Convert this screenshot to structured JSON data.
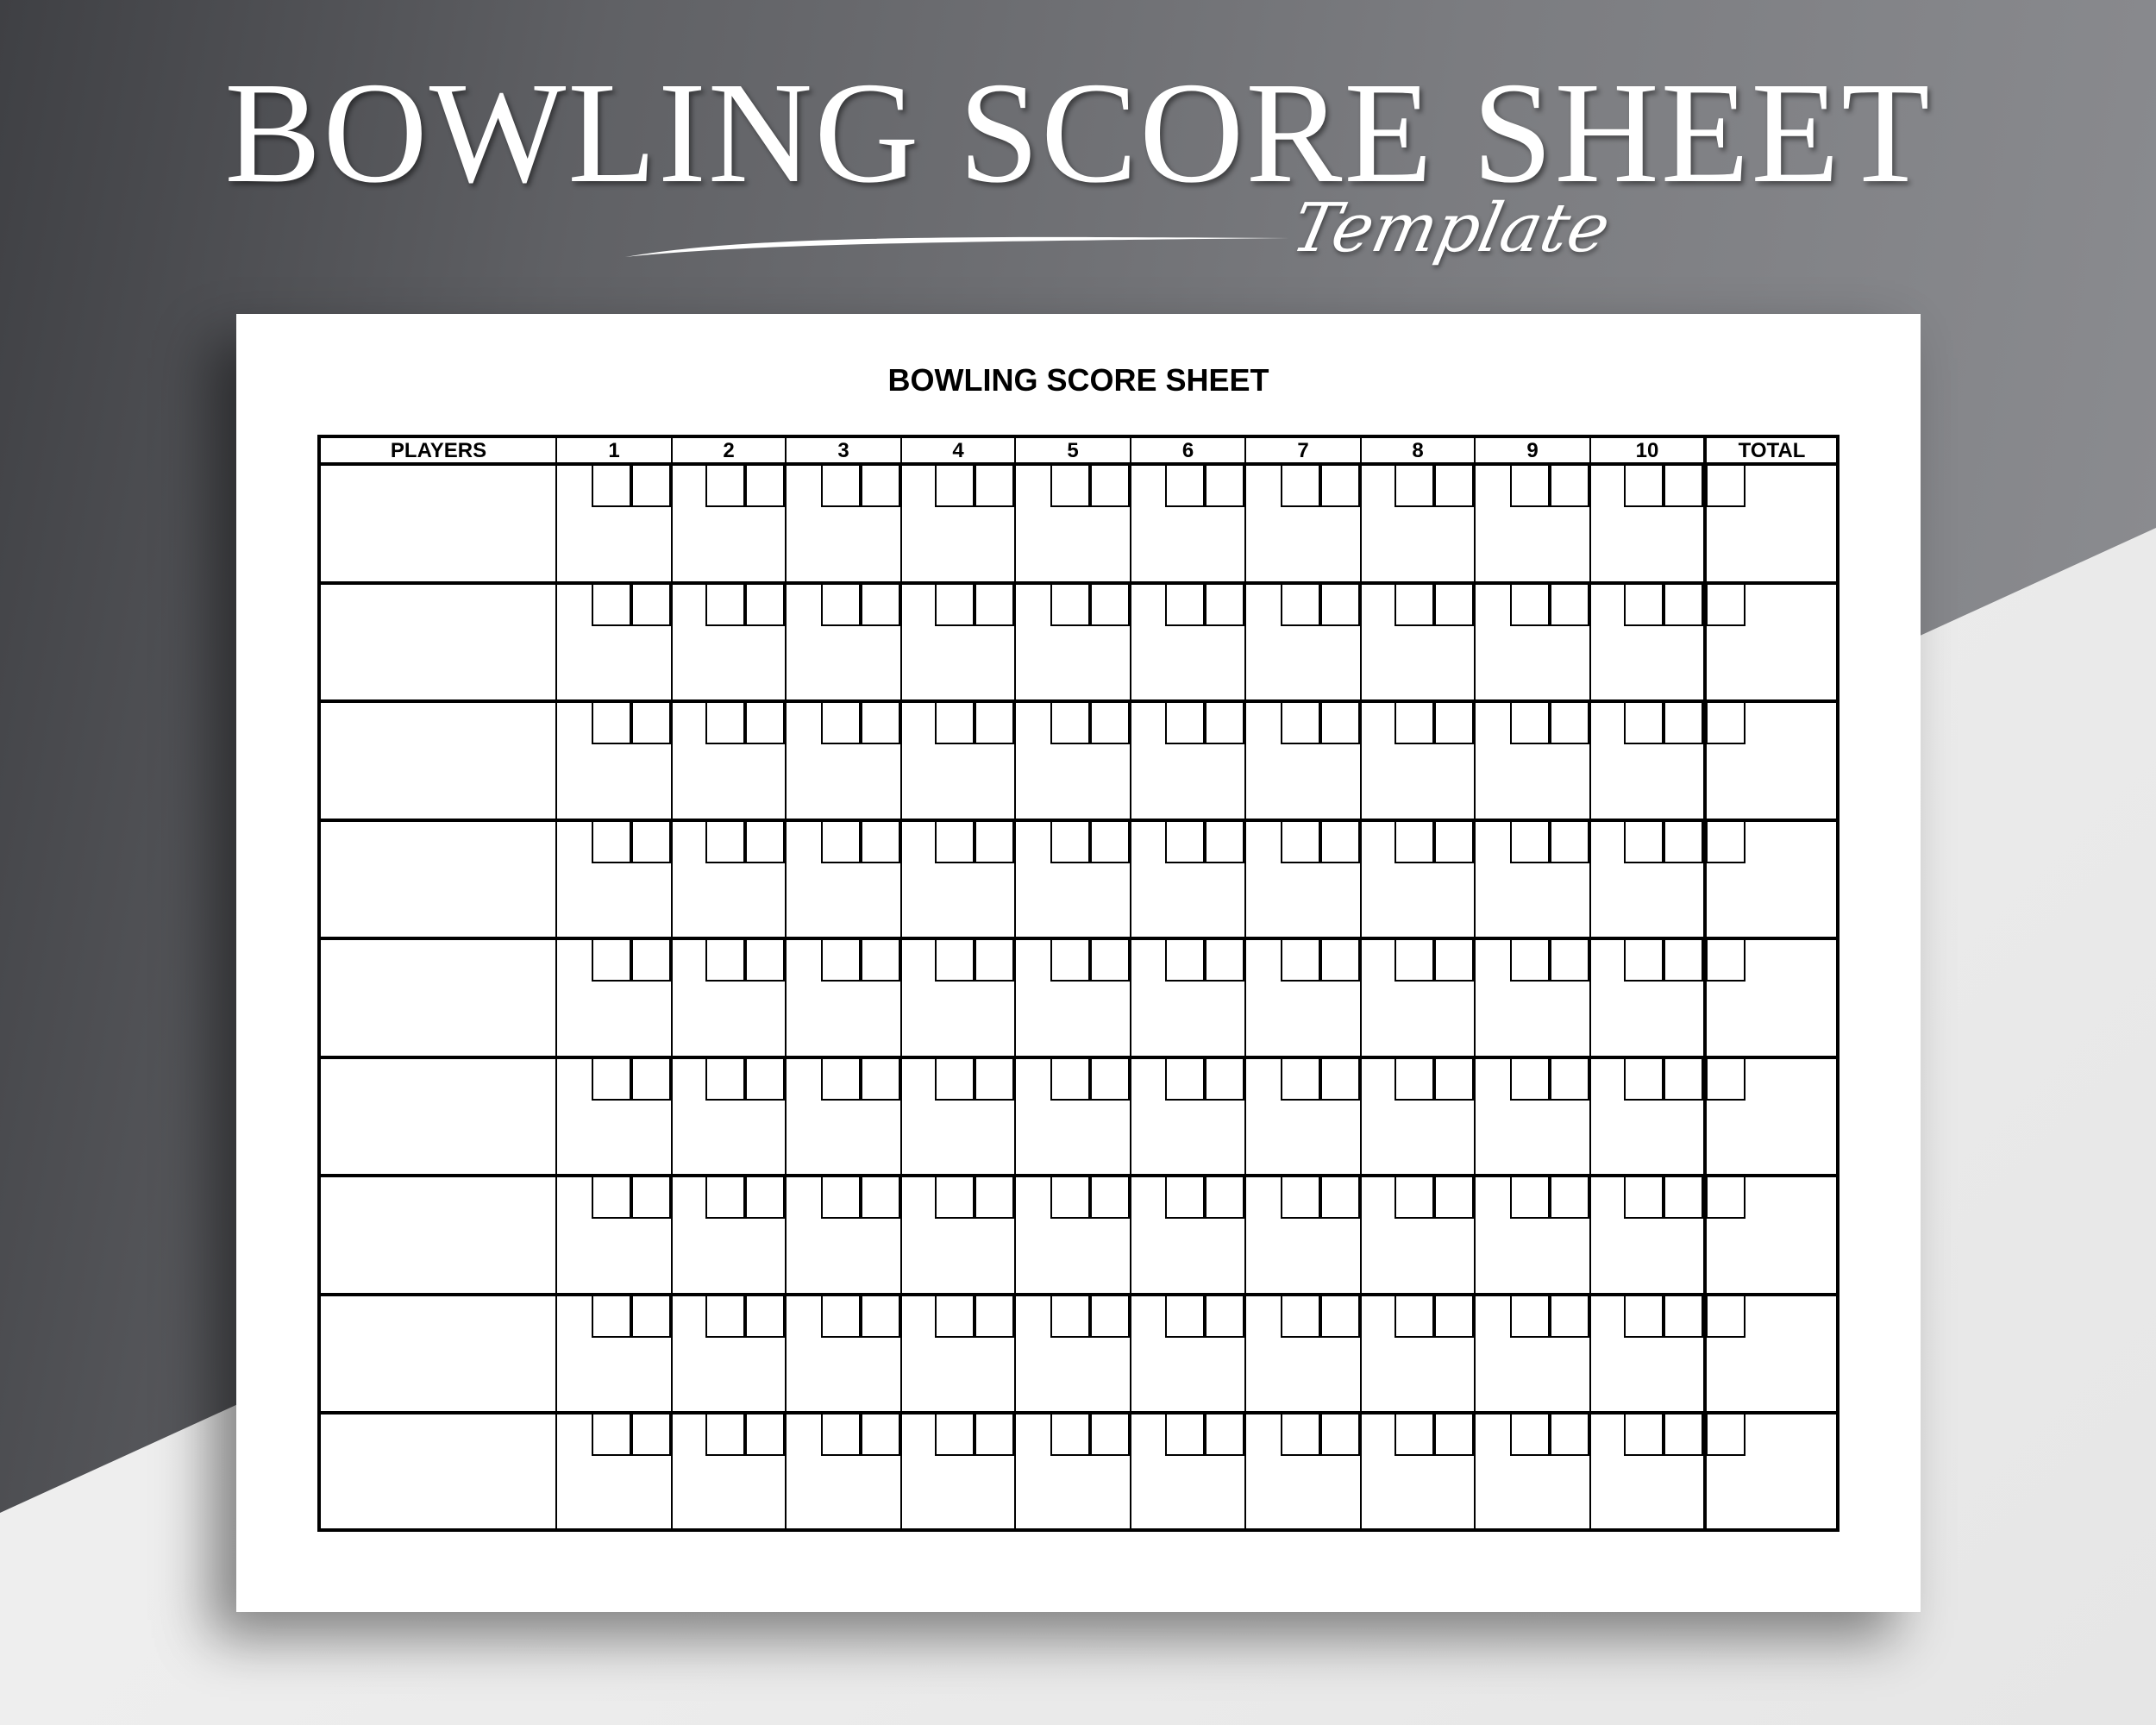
{
  "banner": {
    "title": "BOWLING SCORE SHEET",
    "subtitle": "Template"
  },
  "sheet": {
    "title": "BOWLING SCORE SHEET",
    "columns": [
      "PLAYERS",
      "1",
      "2",
      "3",
      "4",
      "5",
      "6",
      "7",
      "8",
      "9",
      "10",
      "TOTAL"
    ],
    "player_rows": 9
  }
}
